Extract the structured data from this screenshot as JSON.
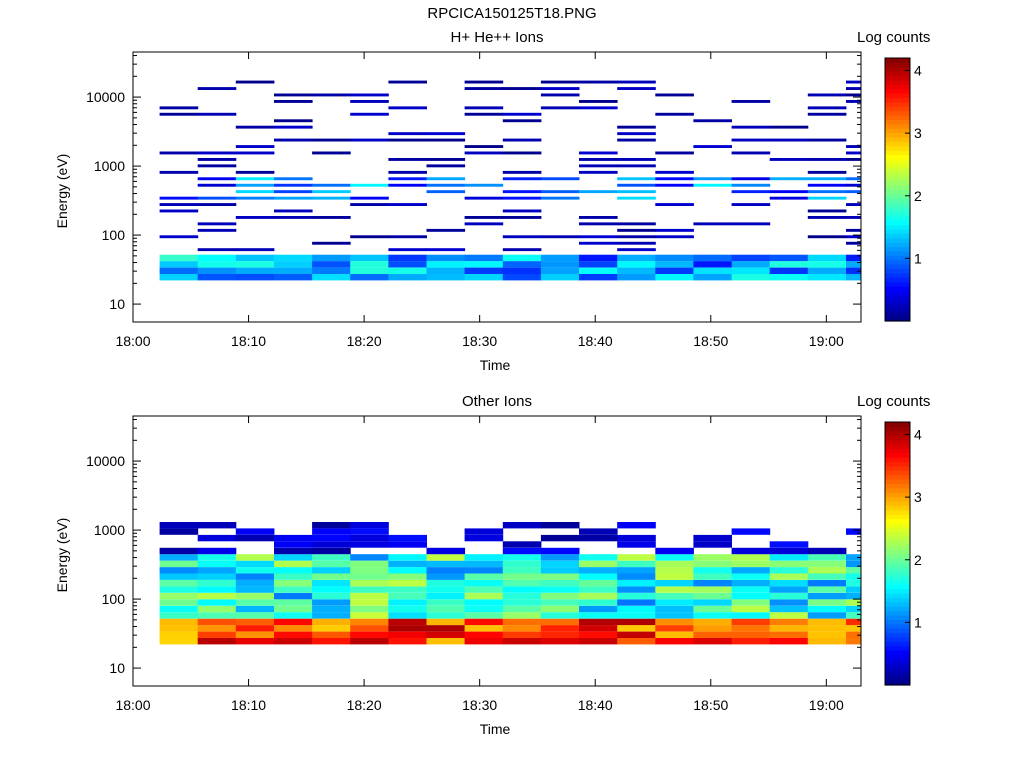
{
  "page": {
    "title": "RPCICA150125T18.PNG"
  },
  "chart_data": [
    {
      "type": "heatmap",
      "title": "H+ He++ Ions",
      "xlabel": "Time",
      "ylabel": "Energy (eV)",
      "x_ticks": [
        "18:00",
        "18:10",
        "18:20",
        "18:30",
        "18:40",
        "18:50",
        "19:00"
      ],
      "y_ticks": [
        "10",
        "100",
        "1000",
        "10000"
      ],
      "y_scale": "log",
      "ylim": [
        5.5,
        45000
      ],
      "xlim_minutes": [
        0,
        63
      ],
      "colorbar": {
        "title": "Log counts",
        "ticks": [
          "1",
          "2",
          "3",
          "4"
        ],
        "range": [
          0,
          4.2
        ]
      },
      "time_bins_minutes": [
        2.3,
        5.6,
        8.9,
        12.2,
        15.5,
        18.8,
        22.1,
        25.4,
        28.7,
        32.0,
        35.3,
        38.6,
        41.9,
        45.2,
        48.5,
        51.8,
        55.1,
        58.4,
        61.7,
        63.0
      ],
      "x_minutes": [
        2.3,
        5.6,
        8.9,
        12.2,
        15.5,
        18.8,
        22.1,
        25.4,
        28.7,
        32.0,
        35.3,
        38.6,
        41.9,
        45.2,
        48.5,
        51.8,
        55.1,
        58.4,
        61.7,
        63.0
      ],
      "grid": false
    },
    {
      "type": "heatmap",
      "title": "Other Ions",
      "xlabel": "Time",
      "ylabel": "Energy (eV)",
      "x_ticks": [
        "18:00",
        "18:10",
        "18:20",
        "18:30",
        "18:40",
        "18:50",
        "19:00"
      ],
      "y_ticks": [
        "10",
        "100",
        "1000",
        "10000"
      ],
      "y_scale": "log",
      "ylim": [
        5.5,
        45000
      ],
      "xlim_minutes": [
        0,
        63
      ],
      "colorbar": {
        "title": "Log counts",
        "ticks": [
          "1",
          "2",
          "3",
          "4"
        ],
        "range": [
          0,
          4.2
        ]
      },
      "x_minutes": [
        2.3,
        5.6,
        8.9,
        12.2,
        15.5,
        18.8,
        22.1,
        25.4,
        28.7,
        32.0,
        35.3,
        38.6,
        41.9,
        45.2,
        48.5,
        51.8,
        55.1,
        58.4,
        61.7,
        63.0
      ],
      "grid": false
    }
  ]
}
